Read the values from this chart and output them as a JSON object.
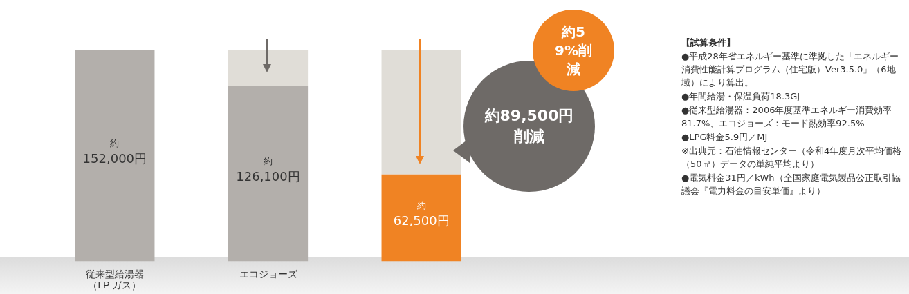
{
  "chart_data": {
    "type": "bar",
    "stacked": true,
    "categories": [
      "従来型給湯器（LP ガス）",
      "エコジョーズ",
      null
    ],
    "series": [
      {
        "colors": [
          "#b3afab",
          "#b3afab",
          "#f08323"
        ],
        "values": [
          152000,
          126100,
          62500
        ],
        "value_labels": [
          "約\n152,000円",
          "約\n126,100円",
          "約\n62,500円"
        ]
      },
      {
        "color": "#e0ddd7",
        "values": [
          null,
          25900,
          89500
        ]
      }
    ],
    "legend": false,
    "grid": false,
    "tick_labels": "x",
    "annotations": [
      "約89,500円削減",
      "約59%削減",
      "【試算条件】",
      "●平成28年省エネルギー基準に準拠した「エネルギー消費性能計算プログラム（住宅版）Ver3.5.0」（6地域）により算出。",
      "●年間給湯・保温負荷18.3GJ",
      "●従来型給湯器：2006年度基準エネルギー消費効率81.7%、エコジョーズ：モード熱効率92.5%",
      "●LPG料金5.9円／MJ",
      "※出典元：石油情報センター（令和4年度月次平均価格（50㎥）データの単純平均より）",
      "●電気料金31円／kWh（全国家庭電気製品公正取引協議会『電力料金の目安単価』より）"
    ]
  }
}
